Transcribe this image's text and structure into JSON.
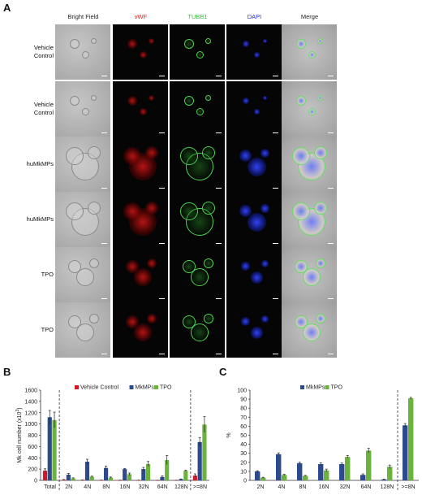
{
  "panel_a": {
    "letter": "A",
    "columns": [
      {
        "label": "Bright Field",
        "color": "#222222"
      },
      {
        "label": "vWF",
        "color": "#e0201f"
      },
      {
        "label": "TUBB1",
        "color": "#3cc43c"
      },
      {
        "label": "DAPI",
        "color": "#2233dd"
      },
      {
        "label": "Merge",
        "color": "#222222"
      }
    ],
    "rows": [
      {
        "label_lines": [
          "Vehicle",
          "Control"
        ],
        "size": "small"
      },
      {
        "label_lines": [
          "Vehicle",
          "Control"
        ],
        "size": "small"
      },
      {
        "label_lines": [
          "huMkMPs"
        ],
        "size": "large"
      },
      {
        "label_lines": [
          "huMkMPs"
        ],
        "size": "large"
      },
      {
        "label_lines": [
          "TPO"
        ],
        "size": "medium"
      },
      {
        "label_lines": [
          "TPO"
        ],
        "size": "medium"
      }
    ]
  },
  "chart_data": [
    {
      "panel": "B",
      "type": "bar",
      "ylabel_main": "Mk cell number (x10",
      "ylabel_sup": "3",
      "ylabel_end": ")",
      "ylim": [
        0,
        1600
      ],
      "yticks": [
        "0",
        "200",
        "400",
        "600",
        "800",
        "1000",
        "1200",
        "1400",
        "1600"
      ],
      "categories": [
        "Total",
        "2N",
        "4N",
        "8N",
        "16N",
        "32N",
        "64N",
        "128N",
        ">=8N"
      ],
      "legend_position": "top",
      "series": [
        {
          "name": "Vehicle Control",
          "color": "#cc1a2a",
          "values": [
            170,
            10,
            5,
            3,
            2,
            2,
            1,
            1,
            85
          ],
          "errors": [
            35,
            5,
            3,
            2,
            2,
            2,
            1,
            1,
            30
          ]
        },
        {
          "name": "MkMPs",
          "color": "#2d4a8c",
          "values": [
            1120,
            100,
            330,
            220,
            200,
            200,
            60,
            20,
            680
          ],
          "errors": [
            120,
            25,
            45,
            35,
            10,
            30,
            20,
            5,
            80
          ]
        },
        {
          "name": "TPO",
          "color": "#6cb33e",
          "values": [
            1070,
            35,
            65,
            50,
            110,
            290,
            360,
            170,
            990
          ],
          "errors": [
            140,
            10,
            10,
            10,
            20,
            45,
            80,
            10,
            140
          ]
        }
      ]
    },
    {
      "panel": "C",
      "type": "bar",
      "ylabel": "%",
      "ylim": [
        0,
        100
      ],
      "yticks": [
        "0",
        "10",
        "20",
        "30",
        "40",
        "50",
        "60",
        "70",
        "80",
        "90",
        "100"
      ],
      "categories": [
        "2N",
        "4N",
        "8N",
        "16N",
        "32N",
        "64N",
        "128N",
        ">=8N"
      ],
      "legend_position": "top",
      "series": [
        {
          "name": "MkMPs",
          "color": "#2d4a8c",
          "values": [
            10,
            29,
            19,
            18,
            18,
            6,
            1,
            61
          ],
          "errors": [
            0.7,
            1.5,
            1.2,
            1.5,
            1.2,
            1.2,
            0.3,
            2
          ]
        },
        {
          "name": "TPO",
          "color": "#6cb33e",
          "values": [
            3,
            6,
            5,
            11,
            26,
            33,
            15,
            91
          ],
          "errors": [
            0.5,
            0.8,
            0.6,
            1.5,
            1.5,
            2.5,
            2,
            1
          ]
        }
      ]
    }
  ]
}
